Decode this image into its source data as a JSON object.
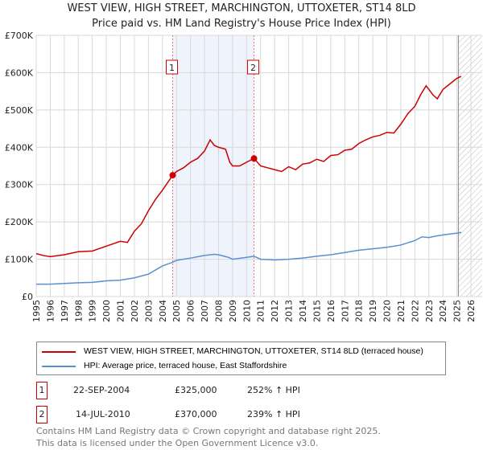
{
  "chart_data": {
    "type": "line",
    "title": "WEST VIEW, HIGH STREET, MARCHINGTON, UTTOXETER, ST14 8LD",
    "subtitle": "Price paid vs. HM Land Registry's House Price Index (HPI)",
    "xlim": [
      1995,
      2026.8
    ],
    "ylim": [
      0,
      700000
    ],
    "yticks": [
      0,
      100000,
      200000,
      300000,
      400000,
      500000,
      600000,
      700000
    ],
    "ytick_labels": [
      "£0",
      "£100K",
      "£200K",
      "£300K",
      "£400K",
      "£500K",
      "£600K",
      "£700K"
    ],
    "xticks": [
      1995,
      1996,
      1997,
      1998,
      1999,
      2000,
      2001,
      2002,
      2003,
      2004,
      2005,
      2006,
      2007,
      2008,
      2009,
      2010,
      2011,
      2012,
      2013,
      2014,
      2015,
      2016,
      2017,
      2018,
      2019,
      2020,
      2021,
      2022,
      2023,
      2024,
      2025,
      2026
    ],
    "grid": true,
    "shaded_range": [
      2004.73,
      2010.53
    ],
    "hatched_from": 2025.1,
    "series": [
      {
        "name": "WEST VIEW, HIGH STREET, MARCHINGTON, UTTOXETER, ST14 8LD (terraced house)",
        "color": "#cc0000",
        "x": [
          1995,
          1995.5,
          1996,
          1997,
          1998,
          1999,
          2000,
          2001,
          2001.5,
          2002,
          2002.5,
          2003,
          2003.5,
          2004,
          2004.73,
          2005,
          2005.5,
          2006,
          2006.5,
          2007,
          2007.4,
          2007.7,
          2008,
          2008.5,
          2008.8,
          2009,
          2009.5,
          2010,
          2010.53,
          2011,
          2011.5,
          2012,
          2012.5,
          2013,
          2013.5,
          2014,
          2014.5,
          2015,
          2015.5,
          2016,
          2016.5,
          2017,
          2017.5,
          2018,
          2018.5,
          2019,
          2019.5,
          2020,
          2020.5,
          2021,
          2021.5,
          2022,
          2022.4,
          2022.8,
          2023,
          2023.3,
          2023.6,
          2024,
          2024.5,
          2025,
          2025.3
        ],
        "y": [
          115000,
          110000,
          107000,
          112000,
          120000,
          122000,
          135000,
          148000,
          145000,
          175000,
          195000,
          230000,
          260000,
          285000,
          325000,
          335000,
          345000,
          360000,
          370000,
          390000,
          420000,
          405000,
          400000,
          395000,
          360000,
          350000,
          350000,
          360000,
          370000,
          350000,
          345000,
          340000,
          335000,
          348000,
          340000,
          355000,
          358000,
          368000,
          362000,
          378000,
          380000,
          392000,
          395000,
          410000,
          420000,
          428000,
          432000,
          440000,
          438000,
          462000,
          490000,
          510000,
          540000,
          565000,
          555000,
          540000,
          530000,
          555000,
          570000,
          585000,
          590000
        ]
      },
      {
        "name": "HPI: Average price, terraced house, East Staffordshire",
        "color": "#5b8fd0",
        "x": [
          1995,
          1996,
          1997,
          1998,
          1999,
          2000,
          2001,
          2002,
          2003,
          2004,
          2004.73,
          2005,
          2006,
          2007,
          2007.7,
          2008,
          2008.7,
          2009,
          2010,
          2010.53,
          2011,
          2012,
          2013,
          2014,
          2015,
          2016,
          2017,
          2018,
          2019,
          2020,
          2021,
          2022,
          2022.5,
          2023,
          2023.5,
          2024,
          2025,
          2025.3
        ],
        "y": [
          33000,
          33000,
          35000,
          37000,
          38000,
          42000,
          44000,
          50000,
          60000,
          82000,
          92000,
          97000,
          103000,
          110000,
          113000,
          112000,
          105000,
          100000,
          105000,
          108000,
          100000,
          98000,
          100000,
          103000,
          108000,
          112000,
          118000,
          124000,
          128000,
          132000,
          138000,
          150000,
          160000,
          158000,
          162000,
          165000,
          170000,
          172000
        ]
      }
    ],
    "sales": [
      {
        "id": "1",
        "year": 2004.73,
        "price": 325000,
        "date": "22-SEP-2004",
        "price_label": "£325,000",
        "hpi": "252% ↑ HPI"
      },
      {
        "id": "2",
        "year": 2010.53,
        "price": 370000,
        "date": "14-JUL-2010",
        "price_label": "£370,000",
        "hpi": "239% ↑ HPI"
      }
    ]
  },
  "footer": {
    "line1": "Contains HM Land Registry data © Crown copyright and database right 2025.",
    "line2": "This data is licensed under the Open Government Licence v3.0."
  }
}
